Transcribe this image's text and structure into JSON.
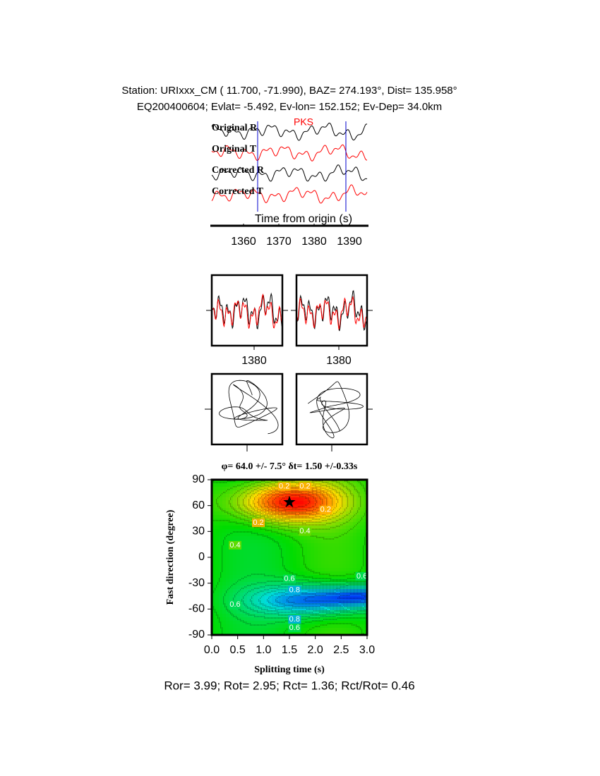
{
  "header": {
    "line1": "Station: URIxxx_CM (  11.700,  -71.990), BAZ=  274.193°, Dist=  135.958°",
    "line2": "EQ200400604; Evlat=  -5.492, Ev-lon= 152.152; Ev-Dep= 34.0km"
  },
  "chart_data": [
    {
      "type": "waveform",
      "phase": "PKS",
      "xlabel": "Time from origin (s)",
      "series": [
        {
          "name": "Original R",
          "color": "#000000"
        },
        {
          "name": "Original T",
          "color": "#ff0000"
        },
        {
          "name": "Corrected R",
          "color": "#000000"
        },
        {
          "name": "Corrected T",
          "color": "#ff0000"
        }
      ],
      "window": [
        1364,
        1389
      ],
      "xlim": [
        1351,
        1395
      ],
      "xticks": [
        1360,
        1370,
        1380,
        1390
      ]
    },
    {
      "type": "waveform",
      "xlim": [
        1368,
        1388
      ],
      "xticks": [
        1380
      ]
    },
    {
      "type": "waveform",
      "xlim": [
        1368,
        1388
      ],
      "xticks": [
        1380
      ]
    },
    {
      "type": "contour",
      "title": "φ= 64.0 +/- 7.5° δt= 1.50 +/-0.33s",
      "xlabel": "Splitting time (s)",
      "ylabel": "Fast direction (degree)",
      "best": [
        1.5,
        64
      ],
      "xlim": [
        0,
        3
      ],
      "ylim": [
        -90,
        90
      ],
      "xticks": [
        {
          "value": 0,
          "label": "0.0"
        },
        0.5,
        {
          "value": 1,
          "label": "1.0"
        },
        1.5,
        {
          "value": 2,
          "label": "2.0"
        },
        2.5,
        {
          "value": 3,
          "label": "3.0"
        }
      ],
      "yticks": [
        -90,
        -60,
        -30,
        0,
        30,
        60,
        90
      ],
      "contour_labels": [
        {
          "value": 0.2,
          "x": 1.4,
          "y": 82
        },
        {
          "value": 0.2,
          "x": 1.8,
          "y": 82
        },
        {
          "value": 0.2,
          "x": 0.9,
          "y": 40
        },
        {
          "value": 0.2,
          "x": 2.2,
          "y": 55
        },
        {
          "value": 0.4,
          "x": 0.45,
          "y": 14
        },
        {
          "value": 0.4,
          "x": 1.8,
          "y": 30
        },
        {
          "value": 0.6,
          "x": 1.5,
          "y": -25
        },
        {
          "value": 0.8,
          "x": 1.6,
          "y": -38
        },
        {
          "value": 0.6,
          "x": 2.9,
          "y": -22
        },
        {
          "value": 0.8,
          "x": 1.6,
          "y": -72
        },
        {
          "value": 0.6,
          "x": 1.6,
          "y": -82
        },
        {
          "value": 0.6,
          "x": 0.45,
          "y": -55
        }
      ]
    }
  ],
  "footer": "Ror= 3.99; Rot= 2.95; Rct= 1.36; Rct/Rot= 0.46"
}
